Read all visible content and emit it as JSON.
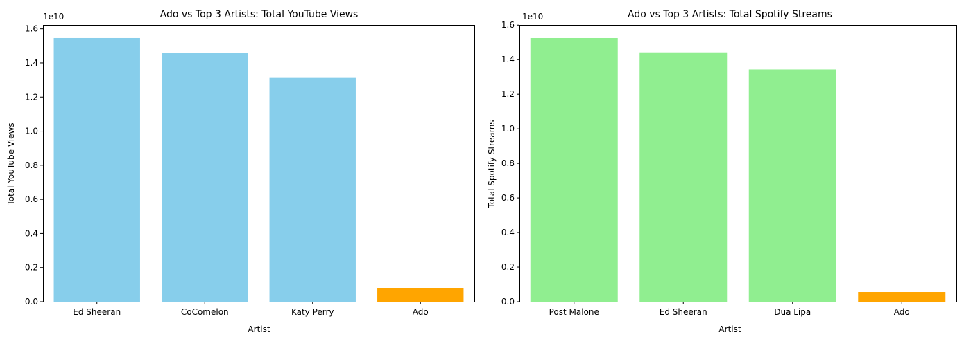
{
  "chart_data": [
    {
      "type": "bar",
      "title": "Ado vs Top 3 Artists: Total YouTube Views",
      "xlabel": "Artist",
      "ylabel": "Total YouTube Views",
      "offset_label": "1e10",
      "categories": [
        "Ed Sheeran",
        "CoComelon",
        "Katy Perry",
        "Ado"
      ],
      "values": [
        15460000000,
        14600000000,
        13120000000,
        810000000
      ],
      "colors": [
        "#87ceeb",
        "#87ceeb",
        "#87ceeb",
        "#ffa500"
      ],
      "ylim": [
        0,
        16230000000
      ],
      "yticks": [
        0,
        2000000000,
        4000000000,
        6000000000,
        8000000000,
        10000000000,
        12000000000,
        14000000000,
        16000000000
      ],
      "ytick_labels": [
        "0.0",
        "0.2",
        "0.4",
        "0.6",
        "0.8",
        "1.0",
        "1.2",
        "1.4",
        "1.6"
      ],
      "grid": false,
      "legend": false
    },
    {
      "type": "bar",
      "title": "Ado vs Top 3 Artists: Total Spotify Streams",
      "xlabel": "Artist",
      "ylabel": "Total Spotify Streams",
      "offset_label": "1e10",
      "categories": [
        "Post Malone",
        "Ed Sheeran",
        "Dua Lipa",
        "Ado"
      ],
      "values": [
        15250000000,
        14420000000,
        13430000000,
        560000000
      ],
      "colors": [
        "#90ee90",
        "#90ee90",
        "#90ee90",
        "#ffa500"
      ],
      "ylim": [
        0,
        16010000000
      ],
      "yticks": [
        0,
        2000000000,
        4000000000,
        6000000000,
        8000000000,
        10000000000,
        12000000000,
        14000000000,
        16000000000
      ],
      "ytick_labels": [
        "0.0",
        "0.2",
        "0.4",
        "0.6",
        "0.8",
        "1.0",
        "1.2",
        "1.4",
        "1.6"
      ],
      "grid": false,
      "legend": false
    }
  ]
}
